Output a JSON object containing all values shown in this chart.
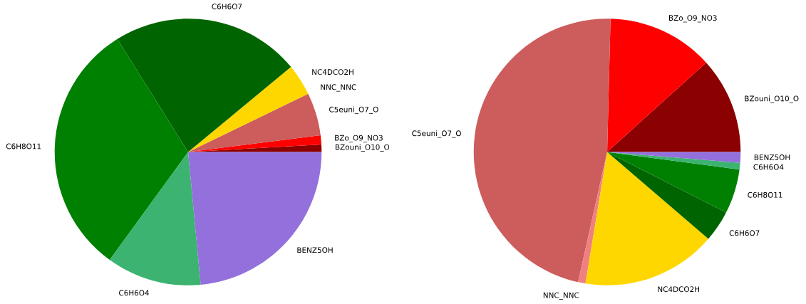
{
  "chart_data": [
    {
      "type": "pie",
      "categories": [
        "BZouni_O10_O",
        "BZo_O9_NO3",
        "C5euni_O7_O",
        "NNC_NNC",
        "NC4DCO2H",
        "C6H6O7",
        "C6H8O11",
        "C6H6O4",
        "BENZ5OH"
      ],
      "values": [
        0.9,
        1.1,
        5.2,
        0,
        3.8,
        22.9,
        31.1,
        11.5,
        23.5
      ],
      "colors": [
        "#8b0000",
        "#ff0000",
        "#cd5c5c",
        "#f08080",
        "#ffd700",
        "#006400",
        "#008000",
        "#3cb371",
        "#9370db"
      ]
    },
    {
      "type": "pie",
      "categories": [
        "BZouni_O10_O",
        "BZo_O9_NO3",
        "C5euni_O7_O",
        "NNC_NNC",
        "NC4DCO2H",
        "C6H6O7",
        "C6H8O11",
        "C6H6O4",
        "BENZ5OH"
      ],
      "values": [
        11.7,
        12.9,
        46.9,
        0.9,
        16.3,
        3.8,
        5.4,
        0.8,
        1.3
      ],
      "colors": [
        "#8b0000",
        "#ff0000",
        "#cd5c5c",
        "#f08080",
        "#ffd700",
        "#006400",
        "#008000",
        "#3cb371",
        "#9370db"
      ]
    }
  ]
}
